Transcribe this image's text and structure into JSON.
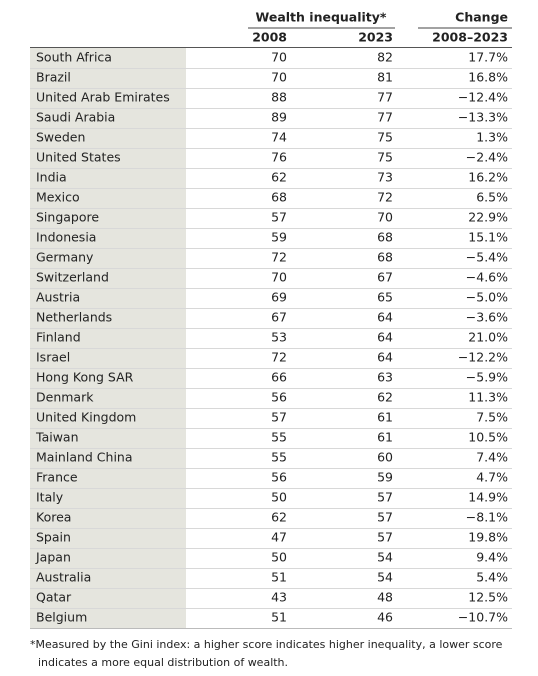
{
  "table": {
    "header": {
      "group": "Wealth inequality*",
      "change": "Change",
      "years": [
        "2008",
        "2023",
        "2008–2023"
      ]
    },
    "rows": [
      [
        "South Africa",
        70,
        82,
        "17.7%"
      ],
      [
        "Brazil",
        70,
        81,
        "16.8%"
      ],
      [
        "United Arab Emirates",
        88,
        77,
        "−12.4%"
      ],
      [
        "Saudi Arabia",
        89,
        77,
        "−13.3%"
      ],
      [
        "Sweden",
        74,
        75,
        "1.3%"
      ],
      [
        "United States",
        76,
        75,
        "−2.4%"
      ],
      [
        "India",
        62,
        73,
        "16.2%"
      ],
      [
        "Mexico",
        68,
        72,
        "6.5%"
      ],
      [
        "Singapore",
        57,
        70,
        "22.9%"
      ],
      [
        "Indonesia",
        59,
        68,
        "15.1%"
      ],
      [
        "Germany",
        72,
        68,
        "−5.4%"
      ],
      [
        "Switzerland",
        70,
        67,
        "−4.6%"
      ],
      [
        "Austria",
        69,
        65,
        "−5.0%"
      ],
      [
        "Netherlands",
        67,
        64,
        "−3.6%"
      ],
      [
        "Finland",
        53,
        64,
        "21.0%"
      ],
      [
        "Israel",
        72,
        64,
        "−12.2%"
      ],
      [
        "Hong Kong SAR",
        66,
        63,
        "−5.9%"
      ],
      [
        "Denmark",
        56,
        62,
        "11.3%"
      ],
      [
        "United Kingdom",
        57,
        61,
        "7.5%"
      ],
      [
        "Taiwan",
        55,
        61,
        "10.5%"
      ],
      [
        "Mainland China",
        55,
        60,
        "7.4%"
      ],
      [
        "France",
        56,
        59,
        "4.7%"
      ],
      [
        "Italy",
        50,
        57,
        "14.9%"
      ],
      [
        "Korea",
        62,
        57,
        "−8.1%"
      ],
      [
        "Spain",
        47,
        57,
        "19.8%"
      ],
      [
        "Japan",
        50,
        54,
        "9.4%"
      ],
      [
        "Australia",
        51,
        54,
        "5.4%"
      ],
      [
        "Qatar",
        43,
        48,
        "12.5%"
      ],
      [
        "Belgium",
        51,
        46,
        "−10.7%"
      ]
    ]
  },
  "footnote": [
    "*Measured by the Gini index: a higher score indicates higher inequality, a lower score",
    "indicates a more equal distribution of wealth."
  ]
}
